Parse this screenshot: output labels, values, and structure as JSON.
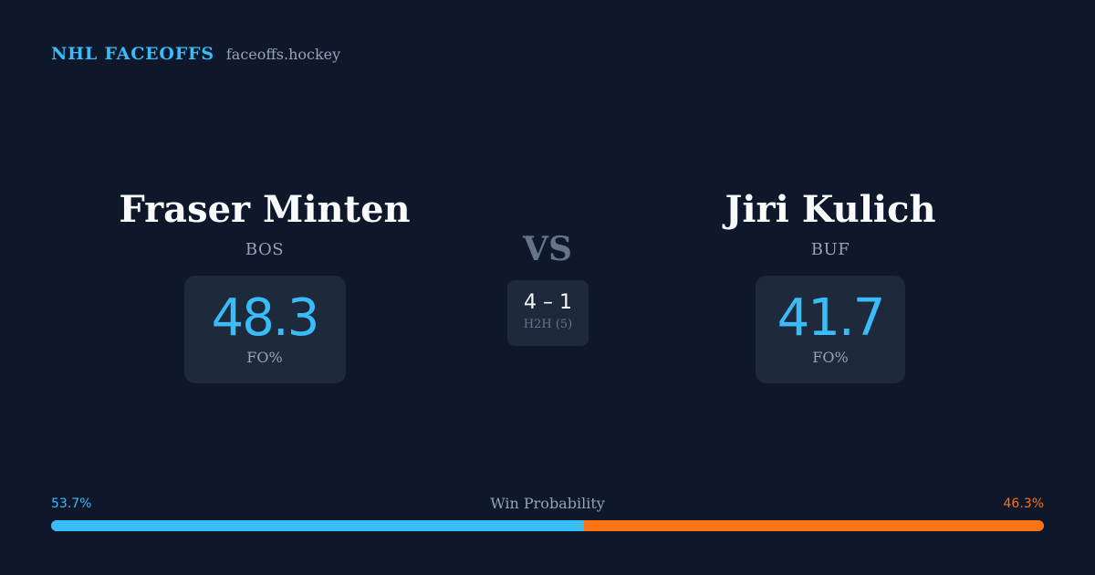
{
  "brand": {
    "title": "NHL FACEOFFS",
    "site": "faceoffs.hockey"
  },
  "players": {
    "left": {
      "name": "Fraser Minten",
      "team": "BOS",
      "stat_value": "48.3",
      "stat_label": "FO%"
    },
    "right": {
      "name": "Jiri Kulich",
      "team": "BUF",
      "stat_value": "41.7",
      "stat_label": "FO%"
    }
  },
  "versus": "VS",
  "head_to_head": {
    "score": "4 – 1",
    "label": "H2H (5)"
  },
  "win_probability": {
    "title": "Win Probability",
    "left_label": "53.7%",
    "right_label": "46.3%",
    "left_fraction": 0.537,
    "colors": {
      "left": "#38bdf8",
      "right": "#f97316"
    }
  },
  "colors": {
    "background": "#0f172a",
    "card": "#1e293b",
    "accent": "#38bdf8",
    "secondary": "#f97316",
    "muted": "#94a3b8"
  }
}
